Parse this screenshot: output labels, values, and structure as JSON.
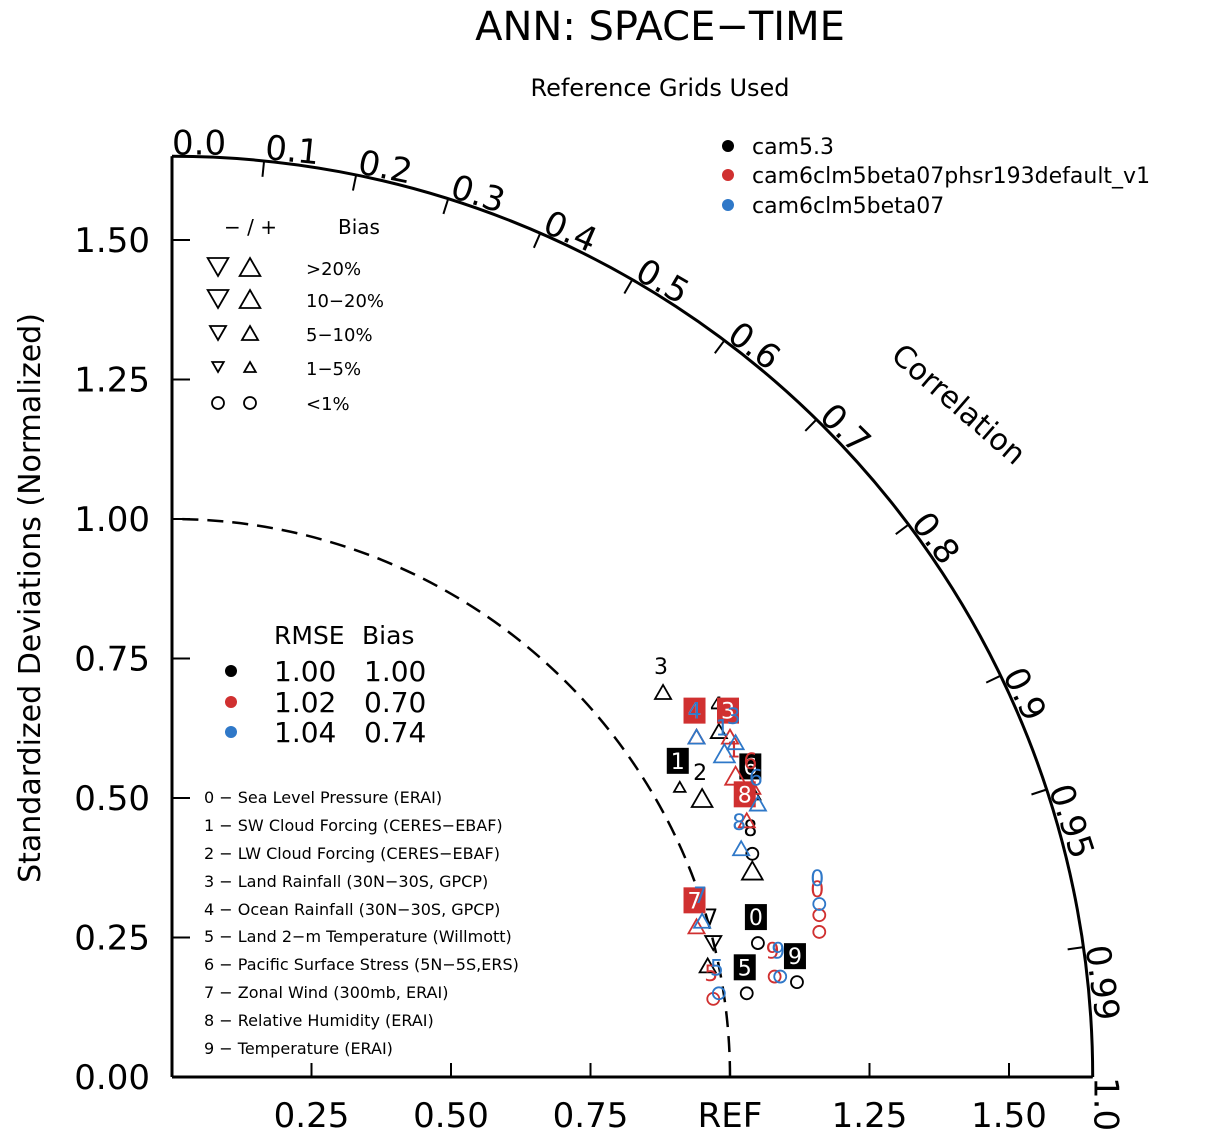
{
  "chart_data": {
    "type": "scatter",
    "subtype": "taylor-diagram",
    "title": "ANN: SPACE−TIME",
    "subtitle": "Reference Grids Used",
    "ylabel": "Standardized Deviations (Normalized)",
    "arc_label": "Correlation",
    "ref_label": "REF",
    "x_tick_labels": [
      "0.25",
      "0.50",
      "0.75",
      "REF",
      "1.25",
      "1.50"
    ],
    "y_tick_labels": [
      "0.00",
      "0.25",
      "0.50",
      "0.75",
      "1.00",
      "1.25",
      "1.50"
    ],
    "correlation_ticks": [
      "0.0",
      "0.1",
      "0.2",
      "0.3",
      "0.4",
      "0.5",
      "0.6",
      "0.7",
      "0.8",
      "0.9",
      "0.95",
      "0.99",
      "1.0"
    ],
    "xlim": [
      0,
      1.65
    ],
    "ylim": [
      0,
      1.65
    ],
    "grid": false,
    "legend_position": "top-right",
    "series": [
      {
        "name": "cam5.3",
        "color": "#000000"
      },
      {
        "name": "cam6clm5beta07phsr193default_v1",
        "color": "#d03030"
      },
      {
        "name": "cam6clm5beta07",
        "color": "#2f78c8"
      }
    ],
    "bias_legend": {
      "header_signs": "− / +",
      "header_bias": "Bias",
      "rows": [
        ">20%",
        "10−20%",
        "5−10%",
        "1−5%",
        "<1%"
      ]
    },
    "rmse_table": {
      "header_rmse": "RMSE",
      "header_bias": "Bias",
      "rows": [
        {
          "rmse": "1.00",
          "bias": "1.00",
          "color": "#000000"
        },
        {
          "rmse": "1.02",
          "bias": "0.70",
          "color": "#d03030"
        },
        {
          "rmse": "1.04",
          "bias": "0.74",
          "color": "#2f78c8"
        }
      ]
    },
    "variables": [
      "0 − Sea Level Pressure (ERAI)",
      "1 − SW Cloud Forcing (CERES−EBAF)",
      "2 − LW Cloud Forcing (CERES−EBAF)",
      "3 − Land Rainfall (30N−30S, GPCP)",
      "4 − Ocean Rainfall (30N−30S, GPCP)",
      "5 − Land 2−m Temperature (Willmott)",
      "6 − Pacific Surface Stress (5N−5S,ERS)",
      "7 − Zonal Wind (300mb, ERAI)",
      "8 − Relative Humidity (ERAI)",
      "9 − Temperature (ERAI)"
    ],
    "points": [
      {
        "label": "0",
        "series": 0,
        "x": 1.05,
        "y": 0.24,
        "marker": "circle",
        "size": 1,
        "boxed": true
      },
      {
        "label": "1",
        "series": 0,
        "x": 0.91,
        "y": 0.52,
        "marker": "up",
        "size": 1,
        "boxed": true
      },
      {
        "label": "2",
        "series": 0,
        "x": 0.95,
        "y": 0.5,
        "marker": "up",
        "size": 3,
        "boxed": false
      },
      {
        "label": "3",
        "series": 0,
        "x": 0.88,
        "y": 0.69,
        "marker": "up",
        "size": 2,
        "boxed": false
      },
      {
        "label": "4",
        "series": 0,
        "x": 0.98,
        "y": 0.62,
        "marker": "up",
        "size": 2,
        "boxed": false
      },
      {
        "label": "5",
        "series": 0,
        "x": 1.03,
        "y": 0.15,
        "marker": "circle",
        "size": 1,
        "boxed": true
      },
      {
        "label": "6",
        "series": 0,
        "x": 1.04,
        "y": 0.51,
        "marker": "up",
        "size": 2,
        "boxed": true
      },
      {
        "label": "7",
        "series": 0,
        "x": 0.97,
        "y": 0.24,
        "marker": "down",
        "size": 2,
        "boxed": false
      },
      {
        "label": "8",
        "series": 0,
        "x": 1.04,
        "y": 0.4,
        "marker": "circle",
        "size": 1,
        "boxed": false
      },
      {
        "label": "9",
        "series": 0,
        "x": 1.12,
        "y": 0.17,
        "marker": "circle",
        "size": 1,
        "boxed": true
      },
      {
        "label": "",
        "series": 0,
        "x": 1.04,
        "y": 0.37,
        "marker": "up",
        "size": 3,
        "boxed": false
      },
      {
        "label": "",
        "series": 0,
        "x": 0.96,
        "y": 0.2,
        "marker": "up",
        "size": 2,
        "boxed": false
      },
      {
        "label": "0",
        "series": 1,
        "x": 1.16,
        "y": 0.29,
        "marker": "circle",
        "size": 1,
        "boxed": false
      },
      {
        "label": "1",
        "series": 1,
        "x": 1.01,
        "y": 0.54,
        "marker": "up",
        "size": 3,
        "boxed": false
      },
      {
        "label": "3",
        "series": 1,
        "x": 1.0,
        "y": 0.61,
        "marker": "up",
        "size": 2,
        "boxed": true
      },
      {
        "label": "4",
        "series": 1,
        "x": 0.94,
        "y": 0.61,
        "marker": "up",
        "size": 2,
        "boxed": true
      },
      {
        "label": "5",
        "series": 1,
        "x": 0.97,
        "y": 0.14,
        "marker": "circle",
        "size": 1,
        "boxed": false
      },
      {
        "label": "6",
        "series": 1,
        "x": 1.04,
        "y": 0.52,
        "marker": "up",
        "size": 2,
        "boxed": false
      },
      {
        "label": "7",
        "series": 1,
        "x": 0.94,
        "y": 0.27,
        "marker": "up",
        "size": 2,
        "boxed": true
      },
      {
        "label": "8",
        "series": 1,
        "x": 1.03,
        "y": 0.46,
        "marker": "up",
        "size": 2,
        "boxed": true
      },
      {
        "label": "9",
        "series": 1,
        "x": 1.08,
        "y": 0.18,
        "marker": "circle",
        "size": 1,
        "boxed": false
      },
      {
        "label": "",
        "series": 1,
        "x": 1.16,
        "y": 0.26,
        "marker": "circle",
        "size": 1,
        "boxed": false
      },
      {
        "label": "0",
        "series": 2,
        "x": 1.16,
        "y": 0.31,
        "marker": "circle",
        "size": 1,
        "boxed": false
      },
      {
        "label": "1",
        "series": 2,
        "x": 0.99,
        "y": 0.58,
        "marker": "up",
        "size": 3,
        "boxed": false
      },
      {
        "label": "3",
        "series": 2,
        "x": 1.01,
        "y": 0.6,
        "marker": "up",
        "size": 2,
        "boxed": false
      },
      {
        "label": "4",
        "series": 2,
        "x": 0.94,
        "y": 0.61,
        "marker": "up",
        "size": 2,
        "boxed": false
      },
      {
        "label": "5",
        "series": 2,
        "x": 0.98,
        "y": 0.15,
        "marker": "circle",
        "size": 1,
        "boxed": false
      },
      {
        "label": "6",
        "series": 2,
        "x": 1.05,
        "y": 0.49,
        "marker": "up",
        "size": 2,
        "boxed": false
      },
      {
        "label": "7",
        "series": 2,
        "x": 0.95,
        "y": 0.28,
        "marker": "up",
        "size": 2,
        "boxed": false
      },
      {
        "label": "8",
        "series": 2,
        "x": 1.02,
        "y": 0.41,
        "marker": "up",
        "size": 2,
        "boxed": false
      },
      {
        "label": "9",
        "series": 2,
        "x": 1.09,
        "y": 0.18,
        "marker": "circle",
        "size": 1,
        "boxed": false
      }
    ]
  }
}
